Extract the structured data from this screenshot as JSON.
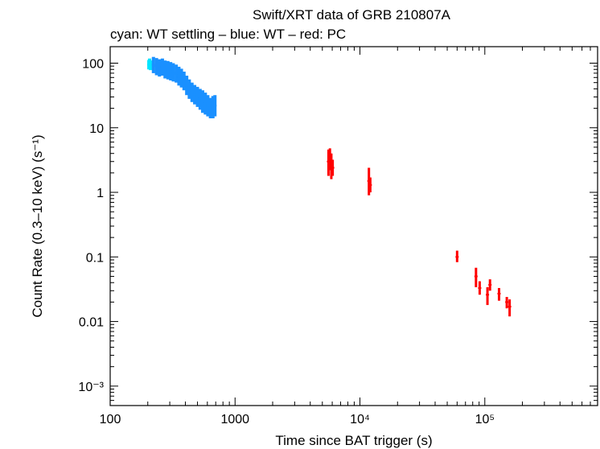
{
  "chart_data": {
    "type": "scatter",
    "title": "Swift/XRT data of GRB 210807A",
    "subtitle": "cyan: WT settling – blue: WT – red: PC",
    "xlabel": "Time since BAT trigger (s)",
    "ylabel": "Count Rate (0.3–10 keV) (s⁻¹)",
    "x_scale": "log",
    "y_scale": "log",
    "xlim": [
      100,
      800000
    ],
    "ylim": [
      0.0005,
      180
    ],
    "grid": false,
    "x_ticks": [
      {
        "value": 100,
        "label": "100"
      },
      {
        "value": 1000,
        "label": "1000"
      },
      {
        "value": 10000,
        "label": "10⁴"
      },
      {
        "value": 100000,
        "label": "10⁵"
      }
    ],
    "y_ticks": [
      {
        "value": 100,
        "label": "100"
      },
      {
        "value": 10,
        "label": "10"
      },
      {
        "value": 1,
        "label": "1"
      },
      {
        "value": 0.1,
        "label": "0.1"
      },
      {
        "value": 0.01,
        "label": "0.01"
      },
      {
        "value": 0.001,
        "label": "10⁻³"
      }
    ],
    "series": [
      {
        "name": "WT settling",
        "color": "#00e5ff",
        "points": [
          {
            "x": 204,
            "y": 95,
            "ylo": 80,
            "yhi": 112
          },
          {
            "x": 207,
            "y": 100,
            "ylo": 84,
            "yhi": 118
          },
          {
            "x": 210,
            "y": 92,
            "ylo": 78,
            "yhi": 110
          }
        ]
      },
      {
        "name": "WT",
        "color": "#1a90ff",
        "points": [
          {
            "x": 222,
            "y": 95,
            "ylo": 70,
            "yhi": 125
          },
          {
            "x": 235,
            "y": 90,
            "ylo": 65,
            "yhi": 120
          },
          {
            "x": 248,
            "y": 85,
            "ylo": 62,
            "yhi": 115
          },
          {
            "x": 262,
            "y": 88,
            "ylo": 64,
            "yhi": 118
          },
          {
            "x": 275,
            "y": 80,
            "ylo": 58,
            "yhi": 110
          },
          {
            "x": 290,
            "y": 78,
            "ylo": 56,
            "yhi": 108
          },
          {
            "x": 305,
            "y": 75,
            "ylo": 54,
            "yhi": 104
          },
          {
            "x": 320,
            "y": 72,
            "ylo": 52,
            "yhi": 100
          },
          {
            "x": 338,
            "y": 68,
            "ylo": 50,
            "yhi": 95
          },
          {
            "x": 355,
            "y": 62,
            "ylo": 45,
            "yhi": 88
          },
          {
            "x": 372,
            "y": 58,
            "ylo": 42,
            "yhi": 82
          },
          {
            "x": 390,
            "y": 52,
            "ylo": 38,
            "yhi": 74
          },
          {
            "x": 410,
            "y": 45,
            "ylo": 32,
            "yhi": 64
          },
          {
            "x": 430,
            "y": 40,
            "ylo": 28,
            "yhi": 56
          },
          {
            "x": 452,
            "y": 36,
            "ylo": 25,
            "yhi": 50
          },
          {
            "x": 475,
            "y": 33,
            "ylo": 23,
            "yhi": 46
          },
          {
            "x": 500,
            "y": 30,
            "ylo": 21,
            "yhi": 43
          },
          {
            "x": 525,
            "y": 28,
            "ylo": 19,
            "yhi": 40
          },
          {
            "x": 550,
            "y": 26,
            "ylo": 17,
            "yhi": 38
          },
          {
            "x": 578,
            "y": 24,
            "ylo": 16,
            "yhi": 35
          },
          {
            "x": 605,
            "y": 22,
            "ylo": 15,
            "yhi": 32
          },
          {
            "x": 635,
            "y": 20,
            "ylo": 14,
            "yhi": 29
          },
          {
            "x": 665,
            "y": 21,
            "ylo": 14,
            "yhi": 31
          },
          {
            "x": 690,
            "y": 22,
            "ylo": 15,
            "yhi": 32
          }
        ]
      },
      {
        "name": "PC",
        "color": "#ff0000",
        "points": [
          {
            "x": 5600,
            "y": 3.0,
            "ylo": 1.8,
            "yhi": 4.6
          },
          {
            "x": 5750,
            "y": 3.4,
            "ylo": 2.2,
            "yhi": 4.8
          },
          {
            "x": 5900,
            "y": 2.6,
            "ylo": 1.6,
            "yhi": 4.0
          },
          {
            "x": 6050,
            "y": 2.4,
            "ylo": 1.8,
            "yhi": 3.2
          },
          {
            "x": 11800,
            "y": 1.5,
            "ylo": 0.9,
            "yhi": 2.4
          },
          {
            "x": 12100,
            "y": 1.3,
            "ylo": 1.0,
            "yhi": 1.7
          },
          {
            "x": 60000,
            "y": 0.1,
            "ylo": 0.083,
            "yhi": 0.125
          },
          {
            "x": 85000,
            "y": 0.05,
            "ylo": 0.034,
            "yhi": 0.068
          },
          {
            "x": 91000,
            "y": 0.033,
            "ylo": 0.026,
            "yhi": 0.042
          },
          {
            "x": 105000,
            "y": 0.026,
            "ylo": 0.018,
            "yhi": 0.034
          },
          {
            "x": 110000,
            "y": 0.037,
            "ylo": 0.03,
            "yhi": 0.045
          },
          {
            "x": 130000,
            "y": 0.027,
            "ylo": 0.021,
            "yhi": 0.033
          },
          {
            "x": 150000,
            "y": 0.02,
            "ylo": 0.016,
            "yhi": 0.024
          },
          {
            "x": 158000,
            "y": 0.017,
            "ylo": 0.012,
            "yhi": 0.022
          }
        ]
      }
    ]
  }
}
